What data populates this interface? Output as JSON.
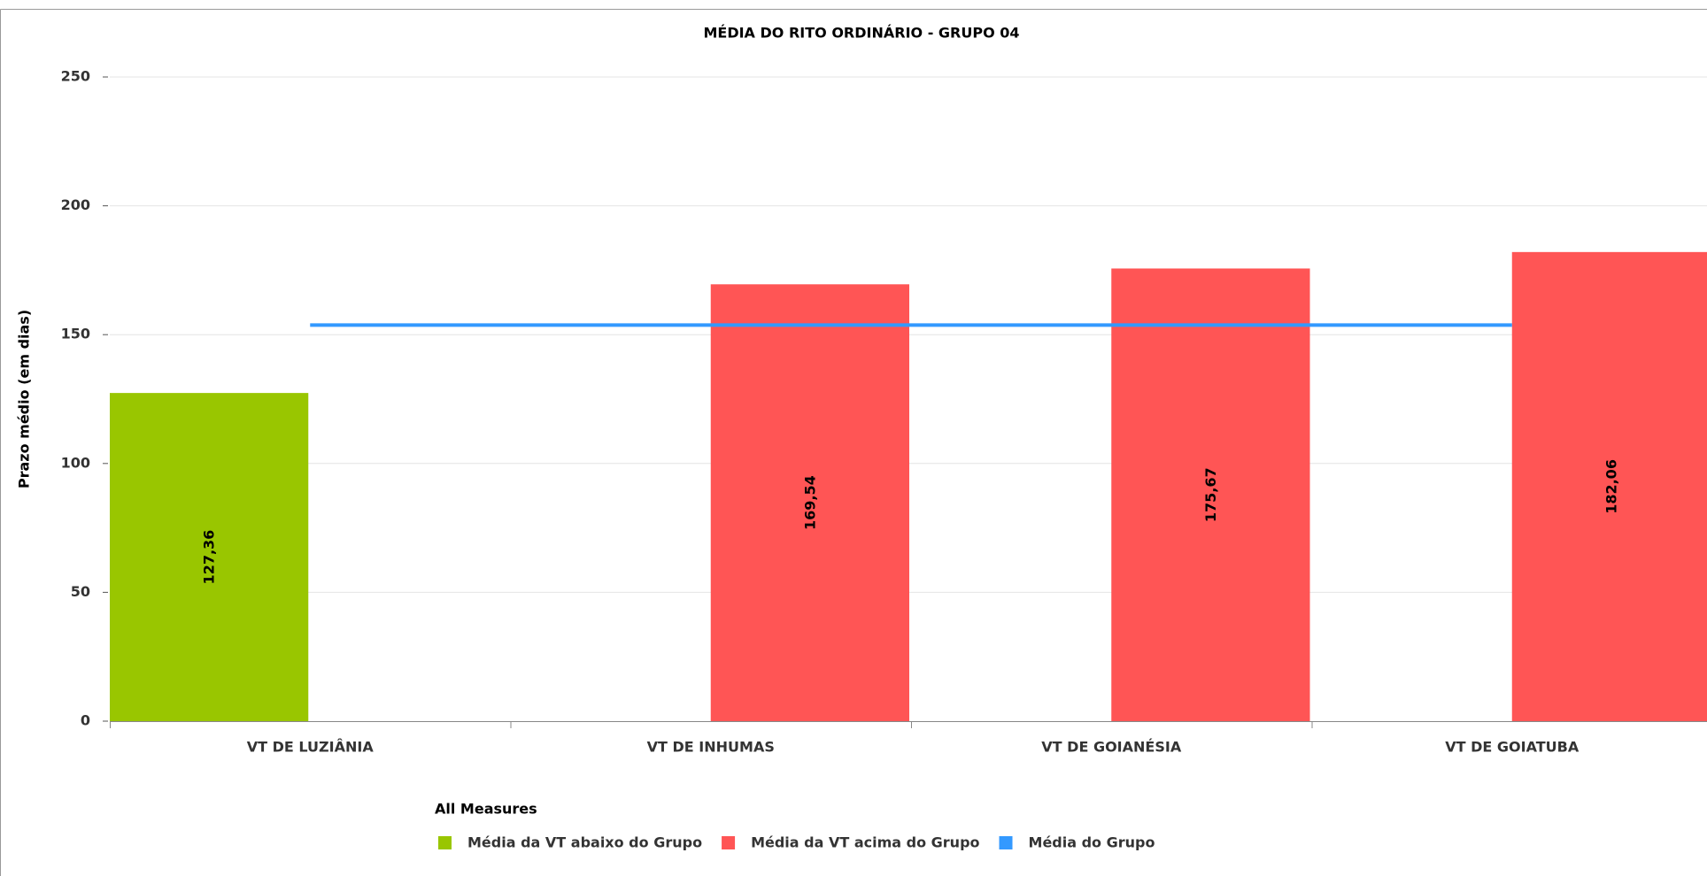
{
  "chart_data": {
    "type": "bar",
    "title": "MÉDIA DO RITO ORDINÁRIO - GRUPO 04",
    "y_label": "Prazo médio (em dias)",
    "legend_title": "All Measures",
    "categories": [
      "VT DE LUZIÂNIA",
      "VT DE INHUMAS",
      "VT DE GOIANÉSIA",
      "VT DE GOIATUBA"
    ],
    "series": [
      {
        "name": "Média da VT abaixo do Grupo",
        "color": "#99c600",
        "type": "bar",
        "values": [
          127.36,
          null,
          null,
          null
        ],
        "value_labels": [
          "127,36",
          null,
          null,
          null
        ]
      },
      {
        "name": "Média da VT acima do Grupo",
        "color": "#ff5555",
        "type": "bar",
        "values": [
          null,
          169.54,
          175.67,
          182.06
        ],
        "value_labels": [
          null,
          "169,54",
          "175,67",
          "182,06"
        ]
      },
      {
        "name": "Média do Grupo",
        "color": "#3399ff",
        "type": "line",
        "values": [
          153.7,
          153.7,
          153.7,
          153.7
        ]
      }
    ],
    "ylim": [
      0,
      250
    ],
    "yticks": [
      0,
      50,
      100,
      150,
      200,
      250
    ],
    "grid": true
  }
}
